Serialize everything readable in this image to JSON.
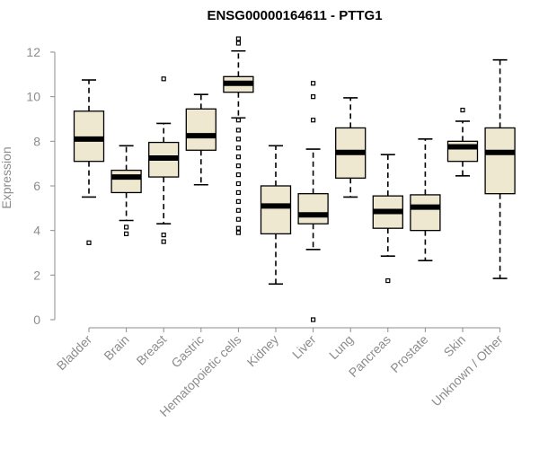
{
  "chart_data": {
    "type": "box",
    "title": "ENSG00000164611 - PTTG1",
    "xlabel": "",
    "ylabel": "Expression",
    "ylim": [
      0,
      12
    ],
    "yticks": [
      0,
      2,
      4,
      6,
      8,
      10,
      12
    ],
    "box_color": "#efe8d0",
    "axis_color": "#8c8c8c",
    "categories": [
      "Bladder",
      "Brain",
      "Breast",
      "Gastric",
      "Hematopoietic cells",
      "Kidney",
      "Liver",
      "Lung",
      "Pancreas",
      "Prostate",
      "Skin",
      "Unknown / Other"
    ],
    "boxes": [
      {
        "category": "Bladder",
        "whisker_low": 5.5,
        "q1": 7.1,
        "median": 8.1,
        "q3": 9.35,
        "whisker_high": 10.75,
        "outliers": [
          3.45
        ]
      },
      {
        "category": "Brain",
        "whisker_low": 4.45,
        "q1": 5.7,
        "median": 6.4,
        "q3": 6.7,
        "whisker_high": 7.8,
        "outliers": [
          4.15,
          3.85
        ]
      },
      {
        "category": "Breast",
        "whisker_low": 4.3,
        "q1": 6.4,
        "median": 7.25,
        "q3": 7.95,
        "whisker_high": 8.8,
        "outliers": [
          10.8,
          3.8,
          3.5
        ]
      },
      {
        "category": "Gastric",
        "whisker_low": 6.05,
        "q1": 7.6,
        "median": 8.25,
        "q3": 9.45,
        "whisker_high": 10.1,
        "outliers": []
      },
      {
        "category": "Hematopoietic cells",
        "whisker_low": 9.05,
        "q1": 10.2,
        "median": 10.6,
        "q3": 10.9,
        "whisker_high": 12.05,
        "outliers": [
          12.6,
          12.4,
          8.95,
          8.5,
          8.1,
          7.7,
          7.3,
          6.9,
          6.5,
          6.1,
          5.7,
          5.3,
          4.9,
          4.5,
          4.1,
          3.9
        ]
      },
      {
        "category": "Kidney",
        "whisker_low": 1.6,
        "q1": 3.85,
        "median": 5.1,
        "q3": 6.0,
        "whisker_high": 7.8,
        "outliers": []
      },
      {
        "category": "Liver",
        "whisker_low": 3.15,
        "q1": 4.3,
        "median": 4.7,
        "q3": 5.65,
        "whisker_high": 7.65,
        "outliers": [
          10.6,
          10.0,
          8.95,
          0.0
        ]
      },
      {
        "category": "Lung",
        "whisker_low": 5.5,
        "q1": 6.35,
        "median": 7.5,
        "q3": 8.6,
        "whisker_high": 9.95,
        "outliers": []
      },
      {
        "category": "Pancreas",
        "whisker_low": 2.85,
        "q1": 4.1,
        "median": 4.85,
        "q3": 5.55,
        "whisker_high": 7.4,
        "outliers": [
          1.75
        ]
      },
      {
        "category": "Prostate",
        "whisker_low": 2.65,
        "q1": 4.0,
        "median": 5.05,
        "q3": 5.6,
        "whisker_high": 8.1,
        "outliers": []
      },
      {
        "category": "Skin",
        "whisker_low": 6.45,
        "q1": 7.1,
        "median": 7.75,
        "q3": 8.0,
        "whisker_high": 8.9,
        "outliers": [
          9.4
        ]
      },
      {
        "category": "Unknown / Other",
        "whisker_low": 1.85,
        "q1": 5.65,
        "median": 7.5,
        "q3": 8.6,
        "whisker_high": 11.65,
        "outliers": []
      }
    ]
  }
}
